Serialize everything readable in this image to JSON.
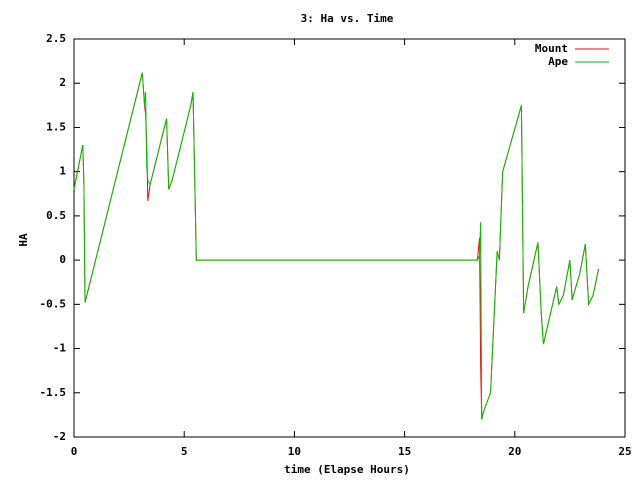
{
  "chart_data": {
    "type": "line",
    "title": "3: Ha vs. Time",
    "x_label": "time (Elapse Hours)",
    "y_label": "HA",
    "x": [
      0,
      0.4,
      0.45,
      0.5,
      3.1,
      3.2,
      3.25,
      3.3,
      3.35,
      3.45,
      4.2,
      4.3,
      4.45,
      5.3,
      5.4,
      5.55,
      18.3,
      18.4,
      18.45,
      18.5,
      18.55,
      18.6,
      18.9,
      19.2,
      19.3,
      19.45,
      20.3,
      20.4,
      20.6,
      21.05,
      21.2,
      21.3,
      21.9,
      22.0,
      22.2,
      22.5,
      22.6,
      22.95,
      23.2,
      23.35,
      23.55,
      23.8
    ],
    "series": [
      {
        "name": "Mount",
        "color": "#ff0000",
        "values": [
          0.8,
          1.3,
          0.85,
          -0.48,
          2.12,
          1.75,
          1.65,
          1.3,
          0.67,
          0.85,
          1.6,
          0.8,
          0.9,
          1.75,
          1.9,
          0,
          0,
          0.25,
          -1.2,
          -1.8,
          -1.75,
          -1.7,
          -1.5,
          0.1,
          0,
          1.0,
          1.75,
          -0.6,
          -0.3,
          0.2,
          -0.6,
          -0.95,
          -0.3,
          -0.5,
          -0.4,
          0,
          -0.45,
          -0.15,
          0.18,
          -0.5,
          -0.4,
          -0.1
        ]
      },
      {
        "name": "Ape",
        "color": "#00c000",
        "values": [
          0.8,
          1.3,
          0.85,
          -0.48,
          2.12,
          1.75,
          1.9,
          1.05,
          0.9,
          0.85,
          1.6,
          0.8,
          0.9,
          1.75,
          1.9,
          0,
          0,
          0.05,
          0.43,
          -1.8,
          -1.75,
          -1.7,
          -1.5,
          0.1,
          0,
          1.0,
          1.75,
          -0.6,
          -0.3,
          0.2,
          -0.6,
          -0.95,
          -0.3,
          -0.5,
          -0.4,
          0,
          -0.45,
          -0.15,
          0.18,
          -0.5,
          -0.4,
          -0.1
        ]
      }
    ],
    "xlim": [
      0,
      25
    ],
    "xticks": [
      0,
      5,
      10,
      15,
      20,
      25
    ],
    "ylim": [
      -2,
      2.5
    ],
    "yticks": [
      -2,
      -1.5,
      -1,
      -0.5,
      0,
      0.5,
      1,
      1.5,
      2,
      2.5
    ],
    "legend": "top-right",
    "grid": false
  }
}
